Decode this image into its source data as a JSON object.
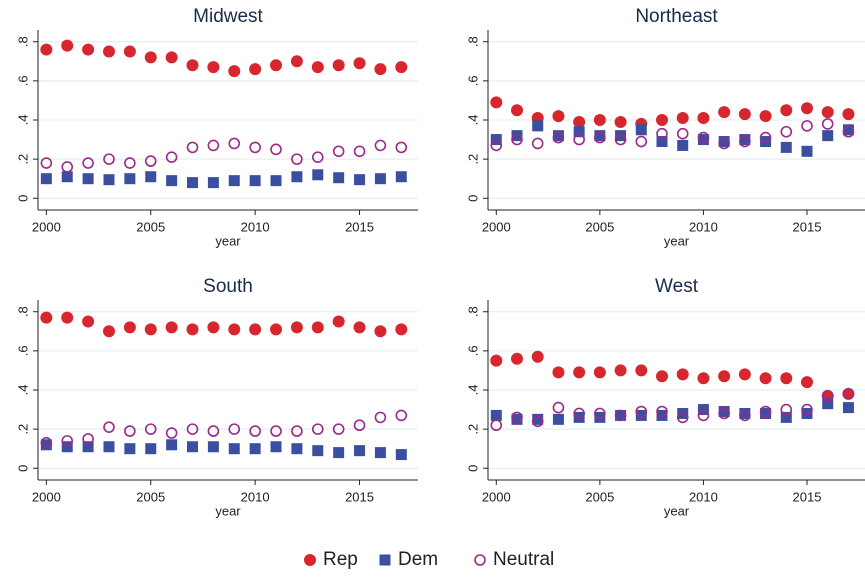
{
  "chart_data": [
    {
      "type": "scatter",
      "title": "Midwest",
      "x_label": "year",
      "x": [
        2000,
        2001,
        2002,
        2003,
        2004,
        2005,
        2006,
        2007,
        2008,
        2009,
        2010,
        2011,
        2012,
        2013,
        2014,
        2015,
        2016,
        2017
      ],
      "xlim": [
        1999.6,
        2017.8
      ],
      "xticks": [
        2000,
        2005,
        2010,
        2015
      ],
      "ylim": [
        -0.06,
        0.86
      ],
      "yticks": [
        0,
        {
          "value": 0.2,
          "label": ".2"
        },
        {
          "value": 0.4,
          "label": ".4"
        },
        {
          "value": 0.6,
          "label": ".6"
        },
        {
          "value": 0.8,
          "label": ".8"
        }
      ],
      "grid": true,
      "series": [
        {
          "name": "Rep",
          "color": "#d7262e",
          "marker": "circle",
          "values": [
            0.76,
            0.78,
            0.76,
            0.75,
            0.75,
            0.72,
            0.72,
            0.68,
            0.67,
            0.65,
            0.66,
            0.68,
            0.7,
            0.67,
            0.68,
            0.69,
            0.66,
            0.67
          ]
        },
        {
          "name": "Dem",
          "color": "#3a4fa0",
          "marker": "square",
          "values": [
            0.1,
            0.11,
            0.1,
            0.095,
            0.1,
            0.11,
            0.09,
            0.08,
            0.08,
            0.09,
            0.09,
            0.09,
            0.11,
            0.12,
            0.105,
            0.095,
            0.1,
            0.11
          ]
        },
        {
          "name": "Neutral",
          "color": "#9b2a8a",
          "marker": "hollow-circle",
          "values": [
            0.18,
            0.16,
            0.18,
            0.2,
            0.18,
            0.19,
            0.21,
            0.26,
            0.27,
            0.28,
            0.26,
            0.25,
            0.2,
            0.21,
            0.24,
            0.24,
            0.27,
            0.26
          ]
        }
      ]
    },
    {
      "type": "scatter",
      "title": "Northeast",
      "x_label": "year",
      "x": [
        2000,
        2001,
        2002,
        2003,
        2004,
        2005,
        2006,
        2007,
        2008,
        2009,
        2010,
        2011,
        2012,
        2013,
        2014,
        2015,
        2016,
        2017
      ],
      "xlim": [
        1999.6,
        2017.8
      ],
      "xticks": [
        2000,
        2005,
        2010,
        2015
      ],
      "ylim": [
        -0.06,
        0.86
      ],
      "yticks": [
        0,
        {
          "value": 0.2,
          "label": ".2"
        },
        {
          "value": 0.4,
          "label": ".4"
        },
        {
          "value": 0.6,
          "label": ".6"
        },
        {
          "value": 0.8,
          "label": ".8"
        }
      ],
      "grid": true,
      "series": [
        {
          "name": "Rep",
          "color": "#d7262e",
          "marker": "circle",
          "values": [
            0.49,
            0.45,
            0.41,
            0.42,
            0.39,
            0.4,
            0.39,
            0.38,
            0.4,
            0.41,
            0.41,
            0.44,
            0.43,
            0.42,
            0.45,
            0.46,
            0.44,
            0.43
          ]
        },
        {
          "name": "Dem",
          "color": "#3a4fa0",
          "marker": "square",
          "values": [
            0.3,
            0.32,
            0.37,
            0.32,
            0.34,
            0.32,
            0.32,
            0.35,
            0.29,
            0.27,
            0.3,
            0.29,
            0.3,
            0.29,
            0.26,
            0.24,
            0.32,
            0.35
          ]
        },
        {
          "name": "Neutral",
          "color": "#9b2a8a",
          "marker": "hollow-circle",
          "values": [
            0.27,
            0.3,
            0.28,
            0.31,
            0.3,
            0.31,
            0.3,
            0.29,
            0.33,
            0.33,
            0.31,
            0.28,
            0.29,
            0.31,
            0.34,
            0.37,
            0.38,
            0.34
          ]
        }
      ]
    },
    {
      "type": "scatter",
      "title": "South",
      "x_label": "year",
      "x": [
        2000,
        2001,
        2002,
        2003,
        2004,
        2005,
        2006,
        2007,
        2008,
        2009,
        2010,
        2011,
        2012,
        2013,
        2014,
        2015,
        2016,
        2017
      ],
      "xlim": [
        1999.6,
        2017.8
      ],
      "xticks": [
        2000,
        2005,
        2010,
        2015
      ],
      "ylim": [
        -0.06,
        0.86
      ],
      "yticks": [
        0,
        {
          "value": 0.2,
          "label": ".2"
        },
        {
          "value": 0.4,
          "label": ".4"
        },
        {
          "value": 0.6,
          "label": ".6"
        },
        {
          "value": 0.8,
          "label": ".8"
        }
      ],
      "grid": true,
      "series": [
        {
          "name": "Rep",
          "color": "#d7262e",
          "marker": "circle",
          "values": [
            0.77,
            0.77,
            0.75,
            0.7,
            0.72,
            0.71,
            0.72,
            0.71,
            0.72,
            0.71,
            0.71,
            0.71,
            0.72,
            0.72,
            0.75,
            0.72,
            0.7,
            0.71
          ]
        },
        {
          "name": "Dem",
          "color": "#3a4fa0",
          "marker": "square",
          "values": [
            0.12,
            0.11,
            0.11,
            0.11,
            0.1,
            0.1,
            0.12,
            0.11,
            0.11,
            0.1,
            0.1,
            0.11,
            0.1,
            0.09,
            0.08,
            0.09,
            0.08,
            0.07
          ]
        },
        {
          "name": "Neutral",
          "color": "#9b2a8a",
          "marker": "hollow-circle",
          "values": [
            0.13,
            0.14,
            0.15,
            0.21,
            0.19,
            0.2,
            0.18,
            0.2,
            0.19,
            0.2,
            0.19,
            0.19,
            0.19,
            0.2,
            0.2,
            0.22,
            0.26,
            0.27
          ]
        }
      ]
    },
    {
      "type": "scatter",
      "title": "West",
      "x_label": "year",
      "x": [
        2000,
        2001,
        2002,
        2003,
        2004,
        2005,
        2006,
        2007,
        2008,
        2009,
        2010,
        2011,
        2012,
        2013,
        2014,
        2015,
        2016,
        2017
      ],
      "xlim": [
        1999.6,
        2017.8
      ],
      "xticks": [
        2000,
        2005,
        2010,
        2015
      ],
      "ylim": [
        -0.06,
        0.86
      ],
      "yticks": [
        0,
        {
          "value": 0.2,
          "label": ".2"
        },
        {
          "value": 0.4,
          "label": ".4"
        },
        {
          "value": 0.6,
          "label": ".6"
        },
        {
          "value": 0.8,
          "label": ".8"
        }
      ],
      "grid": true,
      "series": [
        {
          "name": "Rep",
          "color": "#d7262e",
          "marker": "circle",
          "values": [
            0.55,
            0.56,
            0.57,
            0.49,
            0.49,
            0.49,
            0.5,
            0.5,
            0.47,
            0.48,
            0.46,
            0.47,
            0.48,
            0.46,
            0.46,
            0.44,
            0.37,
            0.38
          ]
        },
        {
          "name": "Dem",
          "color": "#3a4fa0",
          "marker": "square",
          "values": [
            0.27,
            0.25,
            0.25,
            0.25,
            0.26,
            0.26,
            0.27,
            0.27,
            0.27,
            0.28,
            0.3,
            0.29,
            0.28,
            0.28,
            0.26,
            0.28,
            0.33,
            0.31
          ]
        },
        {
          "name": "Neutral",
          "color": "#9b2a8a",
          "marker": "hollow-circle",
          "values": [
            0.22,
            0.26,
            0.24,
            0.31,
            0.28,
            0.28,
            0.27,
            0.29,
            0.29,
            0.26,
            0.27,
            0.28,
            0.27,
            0.29,
            0.3,
            0.3,
            0.37,
            0.38
          ]
        }
      ]
    }
  ]
}
